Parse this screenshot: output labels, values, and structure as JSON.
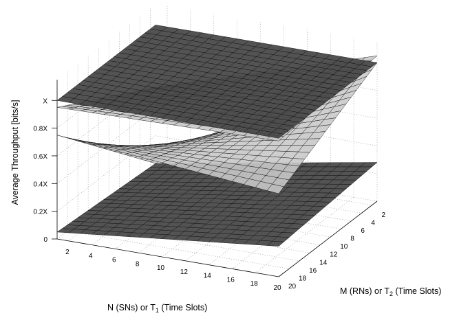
{
  "chart_data": {
    "type": "surface3d",
    "title": "",
    "xlabel": "N (SNs) or T",
    "xlabel_sub": "1",
    "xlabel_tail": " (Time Slots)",
    "ylabel": "M (RNs) or T",
    "ylabel_sub": "2",
    "ylabel_tail": " (Time Slots)",
    "zlabel": "Average Throughput  [bits/s]",
    "x_ticks": [
      "2",
      "4",
      "6",
      "8",
      "10",
      "12",
      "14",
      "16",
      "18",
      "20"
    ],
    "y_ticks": [
      "2",
      "4",
      "6",
      "8",
      "10",
      "12",
      "14",
      "16",
      "18",
      "20"
    ],
    "z_ticks": [
      "0",
      "0.2X",
      "0.4X",
      "0.6X",
      "0.8X",
      "X"
    ],
    "xlim": [
      1,
      20
    ],
    "ylim": [
      1,
      20
    ],
    "zlim": [
      0,
      1.15
    ],
    "grid": true,
    "surfaces": [
      {
        "id": "bottom",
        "shade": "dark",
        "z_corners": {
          "x1y1": 0.0,
          "x20y1": 0.28,
          "x1y20": 0.05,
          "x20y20": 0.22
        }
      },
      {
        "id": "middle",
        "shade": "light",
        "z_corners": {
          "x1y1": 0.0,
          "x20y1": 1.0,
          "x1y20": 0.75,
          "x20y20": 0.6
        }
      },
      {
        "id": "upper",
        "shade": "light",
        "z_corners": {
          "x1y1": 0.55,
          "x20y1": 1.05,
          "x1y20": 0.95,
          "x20y20": 0.98
        }
      },
      {
        "id": "top-plane",
        "shade": "dark",
        "z_corners": {
          "x1y1": 1.0,
          "x20y1": 1.0,
          "x1y20": 1.0,
          "x20y20": 1.0
        }
      }
    ]
  }
}
